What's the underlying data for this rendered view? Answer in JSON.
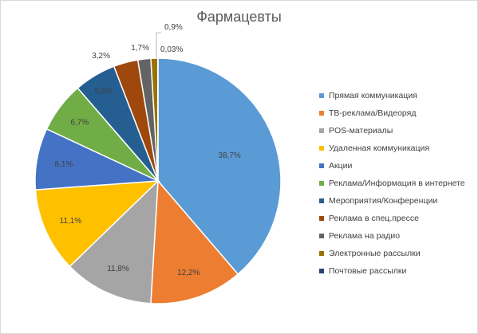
{
  "chart_data": {
    "type": "pie",
    "title": "Фармацевты",
    "legend_position": "right",
    "categories": [
      "Прямая коммуникация",
      "ТВ-реклама/Видеоряд",
      "POS-материалы",
      "Удаленная коммуникация",
      "Акции",
      "Реклама/Информация в интернете",
      "Мероприятия/Конференции",
      "Реклама в спец.прессе",
      "Реклама на радио",
      "Электронные рассылки",
      "Почтовые рассылки"
    ],
    "values": [
      38.7,
      12.2,
      11.8,
      11.1,
      8.1,
      6.7,
      5.5,
      3.2,
      1.7,
      0.9,
      0.03
    ],
    "data_labels": [
      "38,7%",
      "12,2%",
      "11,8%",
      "11,1%",
      "8,1%",
      "6,7%",
      "5,5%",
      "3,2%",
      "1,7%",
      "0,9%",
      "0,03%"
    ],
    "colors": [
      "#5b9bd5",
      "#ed7d31",
      "#a5a5a5",
      "#ffc000",
      "#4472c4",
      "#70ad47",
      "#255e91",
      "#9e480e",
      "#636363",
      "#997300",
      "#264478"
    ]
  }
}
